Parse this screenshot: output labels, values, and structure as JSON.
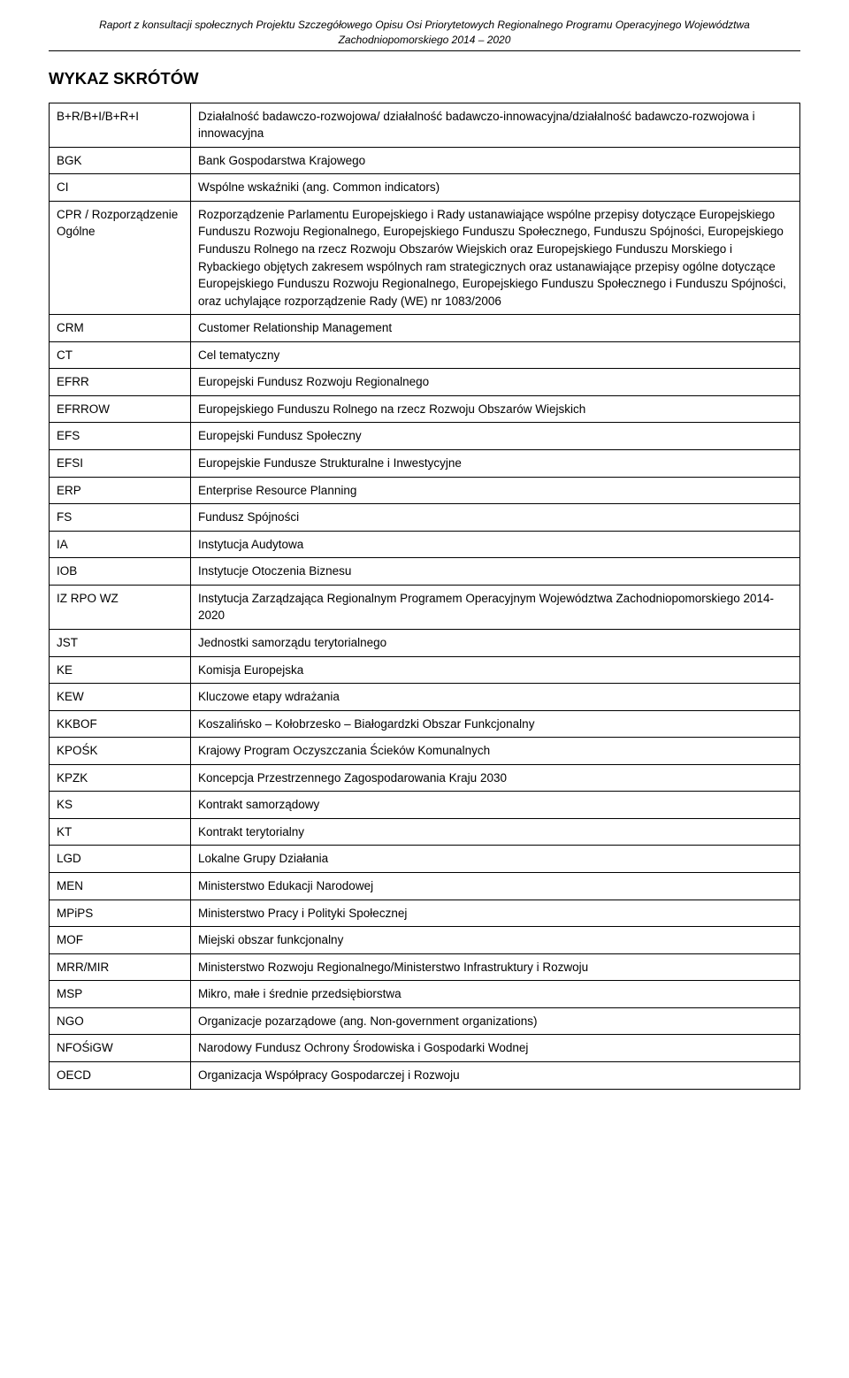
{
  "header": {
    "line1": "Raport z konsultacji społecznych Projektu Szczegółowego Opisu Osi Priorytetowych Regionalnego Programu Operacyjnego Województwa",
    "line2": "Zachodniopomorskiego 2014 – 2020"
  },
  "page_title": "WYKAZ SKRÓTÓW",
  "rows": [
    {
      "abbr": "B+R/B+I/B+R+I",
      "def": "Działalność badawczo-rozwojowa/ działalność badawczo-innowacyjna/działalność badawczo-rozwojowa i innowacyjna"
    },
    {
      "abbr": "BGK",
      "def": "Bank Gospodarstwa Krajowego"
    },
    {
      "abbr": "CI",
      "def": "Wspólne wskaźniki (ang. Common indicators)"
    },
    {
      "abbr": "CPR / Rozporządzenie Ogólne",
      "def": "Rozporządzenie Parlamentu Europejskiego i Rady ustanawiające wspólne przepisy dotyczące Europejskiego Funduszu Rozwoju Regionalnego, Europejskiego Funduszu Społecznego, Funduszu Spójności, Europejskiego Funduszu Rolnego na rzecz Rozwoju Obszarów Wiejskich oraz Europejskiego Funduszu Morskiego i Rybackiego objętych zakresem wspólnych ram strategicznych oraz ustanawiające przepisy ogólne dotyczące Europejskiego Funduszu Rozwoju Regionalnego, Europejskiego Funduszu Społecznego i Funduszu Spójności, oraz uchylające rozporządzenie Rady (WE) nr 1083/2006"
    },
    {
      "abbr": "CRM",
      "def": "Customer Relationship Management"
    },
    {
      "abbr": "CT",
      "def": "Cel tematyczny"
    },
    {
      "abbr": "EFRR",
      "def": "Europejski Fundusz Rozwoju Regionalnego"
    },
    {
      "abbr": "EFRROW",
      "def": "Europejskiego Funduszu Rolnego na rzecz Rozwoju Obszarów Wiejskich"
    },
    {
      "abbr": "EFS",
      "def": "Europejski Fundusz Społeczny"
    },
    {
      "abbr": "EFSI",
      "def": "Europejskie Fundusze Strukturalne i Inwestycyjne"
    },
    {
      "abbr": "ERP",
      "def": "Enterprise Resource Planning"
    },
    {
      "abbr": "FS",
      "def": "Fundusz Spójności"
    },
    {
      "abbr": "IA",
      "def": "Instytucja Audytowa"
    },
    {
      "abbr": "IOB",
      "def": "Instytucje Otoczenia Biznesu"
    },
    {
      "abbr": "IZ RPO WZ",
      "def": "Instytucja Zarządzająca Regionalnym Programem Operacyjnym Województwa Zachodniopomorskiego 2014-2020"
    },
    {
      "abbr": "JST",
      "def": "Jednostki samorządu terytorialnego"
    },
    {
      "abbr": "KE",
      "def": "Komisja Europejska"
    },
    {
      "abbr": "KEW",
      "def": "Kluczowe etapy wdrażania"
    },
    {
      "abbr": "KKBOF",
      "def": "Koszalińsko – Kołobrzesko – Białogardzki Obszar Funkcjonalny"
    },
    {
      "abbr": "KPOŚK",
      "def": "Krajowy Program Oczyszczania Ścieków Komunalnych"
    },
    {
      "abbr": "KPZK",
      "def": "Koncepcja Przestrzennego Zagospodarowania Kraju 2030"
    },
    {
      "abbr": "KS",
      "def": "Kontrakt samorządowy"
    },
    {
      "abbr": "KT",
      "def": "Kontrakt terytorialny"
    },
    {
      "abbr": "LGD",
      "def": "Lokalne Grupy Działania"
    },
    {
      "abbr": "MEN",
      "def": "Ministerstwo Edukacji Narodowej"
    },
    {
      "abbr": "MPiPS",
      "def": "Ministerstwo Pracy i Polityki Społecznej"
    },
    {
      "abbr": "MOF",
      "def": "Miejski obszar funkcjonalny"
    },
    {
      "abbr": "MRR/MIR",
      "def": "Ministerstwo Rozwoju Regionalnego/Ministerstwo Infrastruktury i Rozwoju"
    },
    {
      "abbr": "MSP",
      "def": "Mikro, małe i średnie przedsiębiorstwa"
    },
    {
      "abbr": "NGO",
      "def": "Organizacje pozarządowe (ang. Non-government organizations)"
    },
    {
      "abbr": "NFOŚiGW",
      "def": "Narodowy Fundusz Ochrony Środowiska i Gospodarki Wodnej"
    },
    {
      "abbr": "OECD",
      "def": "Organizacja Współpracy Gospodarczej i Rozwoju"
    }
  ]
}
